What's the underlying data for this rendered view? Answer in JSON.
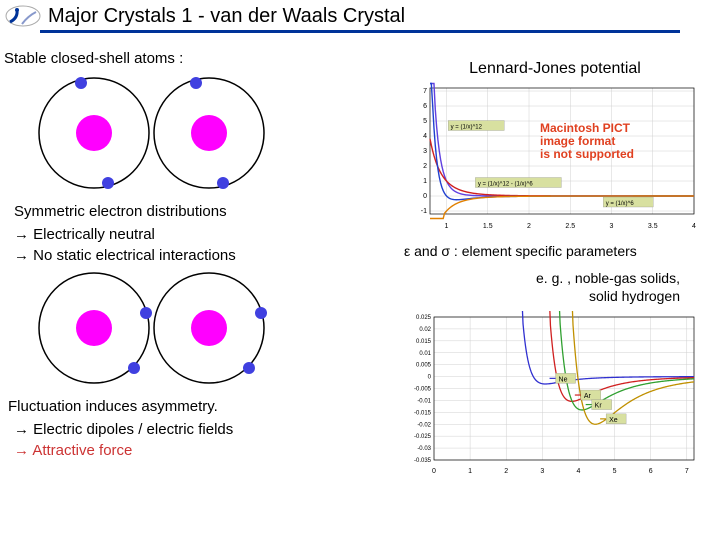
{
  "title": "Major Crystals 1 - van der Waals Crystal",
  "left": {
    "stable": "Stable closed-shell atoms :",
    "symmetric": "Symmetric electron distributions",
    "neutral": "→ Electrically neutral",
    "nostatic": "→ No static electrical interactions",
    "fluct": "Fluctuation induces asymmetry.",
    "dipoles": "→ Electric dipoles / electric fields",
    "attractive": "→ Attractive force"
  },
  "right": {
    "lj": "Lennard-Jones potential",
    "pict1": "Macintosh PICT",
    "pict2": "image format",
    "pict3": "is not supported",
    "params": "ε and σ : element specific parameters",
    "eg": "e. g. , noble-gas solids,\n          solid hydrogen"
  },
  "chart1": {
    "ylim": [
      -1.2,
      7.2
    ],
    "xlim": [
      0.8,
      4.0
    ],
    "xticks": [
      1,
      1.5,
      2,
      2.5,
      3,
      3.5,
      4
    ],
    "yticks": [
      -1,
      0,
      1,
      2,
      3,
      4,
      5,
      6,
      7
    ],
    "curve_r12_color": "#6040e0",
    "curve_r6_color": "#d02020",
    "curve_sum_color": "#2040d0",
    "curve_r6neg_color": "#e08000",
    "anno1": "y = (1/x)^12",
    "anno2": "y = (1/x)^12 - (1/x)^6",
    "anno3": "y = (1/x)^6",
    "bg": "#ffffff",
    "grid": "#d0d0d0"
  },
  "chart2": {
    "ylim": [
      -0.035,
      0.025
    ],
    "xlim": [
      0,
      7.2
    ],
    "xticks": [
      0,
      1,
      2,
      3,
      4,
      5,
      6,
      7
    ],
    "yticks": [
      -0.035,
      -0.03,
      -0.025,
      -0.02,
      -0.015,
      -0.01,
      -0.005,
      0,
      0.005,
      0.01,
      0.015,
      0.02,
      0.025
    ],
    "elements": [
      "Ne",
      "Ar",
      "Kr",
      "Xe"
    ],
    "colors": [
      "#3030d0",
      "#d02020",
      "#30a030",
      "#c09000"
    ],
    "bg": "#ffffff",
    "grid": "#d0d0d0"
  },
  "atoms": {
    "shell_stroke": "#000000",
    "nucleus_fill": "#ff00ff",
    "electron_fill": "#4040e0"
  }
}
